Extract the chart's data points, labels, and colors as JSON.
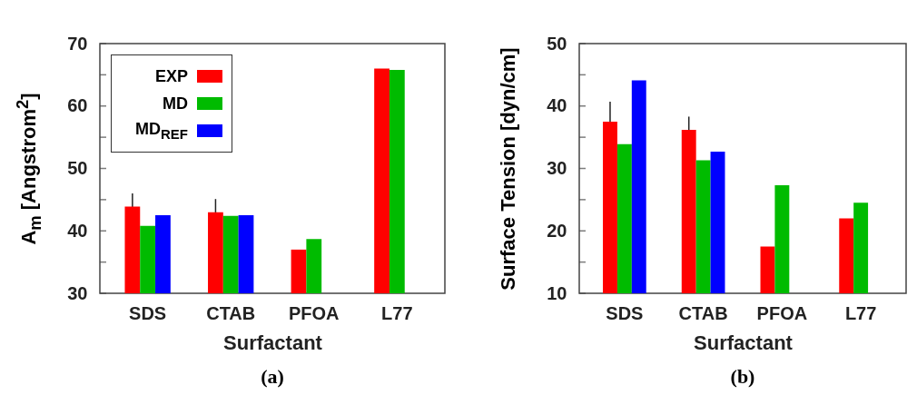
{
  "chart_data": [
    {
      "type": "bar",
      "xlabel": "Surfactant",
      "ylabel": "A$_{m}$ [Angstrom$^{2}$]",
      "categories": [
        "SDS",
        "CTAB",
        "PFOA",
        "L77"
      ],
      "series": [
        {
          "name": "EXP",
          "color": "#ff0000",
          "values": [
            43.9,
            43.0,
            37.0,
            66.0
          ],
          "errors": [
            2.1,
            2.1,
            null,
            null
          ]
        },
        {
          "name": "MD",
          "color": "#00bb00",
          "values": [
            40.8,
            42.4,
            38.7,
            65.8
          ]
        },
        {
          "name": "MD$_{REF}$",
          "color": "#0000ff",
          "values": [
            42.5,
            42.5,
            null,
            null
          ]
        }
      ],
      "ylim": [
        30,
        70
      ],
      "yticks": [
        30,
        {
          "value": 35,
          "label": null
        },
        40,
        {
          "value": 45,
          "label": null
        },
        50,
        {
          "value": 55,
          "label": null
        },
        60,
        {
          "value": 65,
          "label": null
        },
        70
      ],
      "grid": false,
      "legend": "top left",
      "annotations": [
        "(a)"
      ]
    },
    {
      "type": "bar",
      "xlabel": "Surfactant",
      "ylabel": "Surface Tension [dyn/cm]",
      "categories": [
        "SDS",
        "CTAB",
        "PFOA",
        "L77"
      ],
      "series": [
        {
          "color": "#ff0000",
          "values": [
            37.5,
            36.2,
            17.5,
            22.0
          ],
          "errors": [
            3.2,
            2.1,
            null,
            null
          ]
        },
        {
          "color": "#00bb00",
          "values": [
            33.9,
            31.3,
            27.3,
            24.5
          ]
        },
        {
          "color": "#0000ff",
          "values": [
            44.1,
            32.7,
            null,
            null
          ]
        }
      ],
      "ylim": [
        10,
        50
      ],
      "yticks": [
        10,
        {
          "value": 15,
          "label": null
        },
        20,
        {
          "value": 25,
          "label": null
        },
        30,
        {
          "value": 35,
          "label": null
        },
        40,
        {
          "value": 45,
          "label": null
        },
        50
      ],
      "grid": false,
      "legend": false,
      "annotations": [
        "(b)"
      ]
    }
  ]
}
